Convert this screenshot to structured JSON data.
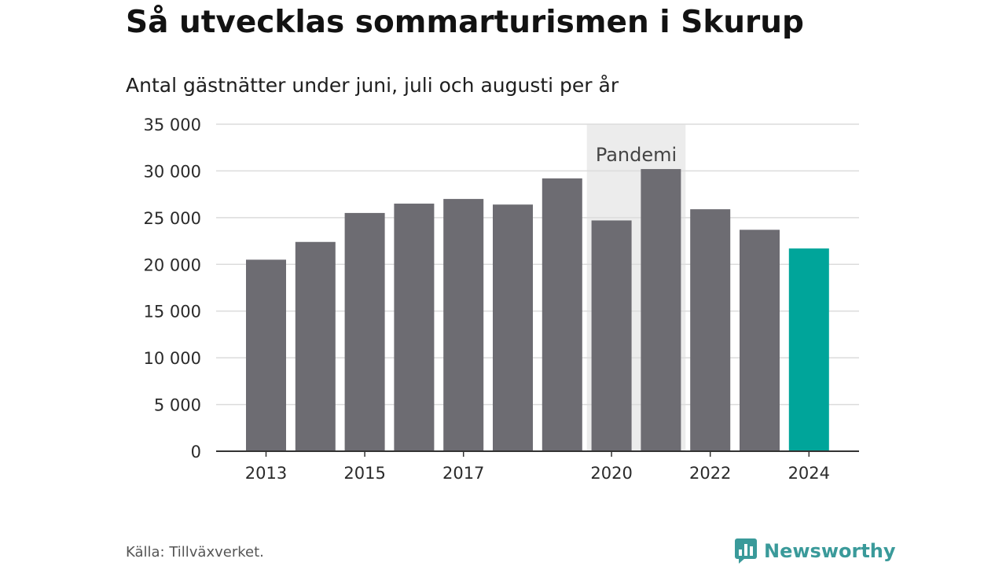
{
  "header": {
    "title": "Så utvecklas sommarturismen i Skurup",
    "subtitle": "Antal gästnätter under juni, juli och augusti per år"
  },
  "footer": {
    "source": "Källa: Tillväxverket.",
    "brand": "Newsworthy",
    "brand_icon": "bar-chart-speech-bubble-icon"
  },
  "colors": {
    "bar": "#6d6c72",
    "highlight": "#00a59a",
    "band": "#ececec",
    "grid": "#dcdcdc",
    "axis": "#333333",
    "brand": "#3a9a9a"
  },
  "chart_data": {
    "type": "bar",
    "categories": [
      "2013",
      "2014",
      "2015",
      "2016",
      "2017",
      "2018",
      "2019",
      "2020",
      "2021",
      "2022",
      "2023",
      "2024"
    ],
    "values": [
      20500,
      22400,
      25500,
      26500,
      27000,
      26400,
      29200,
      24700,
      30200,
      25900,
      23700,
      21700
    ],
    "highlight_category": "2024",
    "x_tick_labels": [
      "2013",
      "2015",
      "2017",
      "2020",
      "2022",
      "2024"
    ],
    "y_ticks": [
      0,
      5000,
      10000,
      15000,
      20000,
      25000,
      30000,
      35000
    ],
    "y_tick_labels": [
      "0",
      "5 000",
      "10 000",
      "15 000",
      "20 000",
      "25 000",
      "30 000",
      "35 000"
    ],
    "ylim": [
      0,
      35000
    ],
    "grid": true,
    "annotation": {
      "label": "Pandemi",
      "from": "2020",
      "to": "2021"
    }
  }
}
